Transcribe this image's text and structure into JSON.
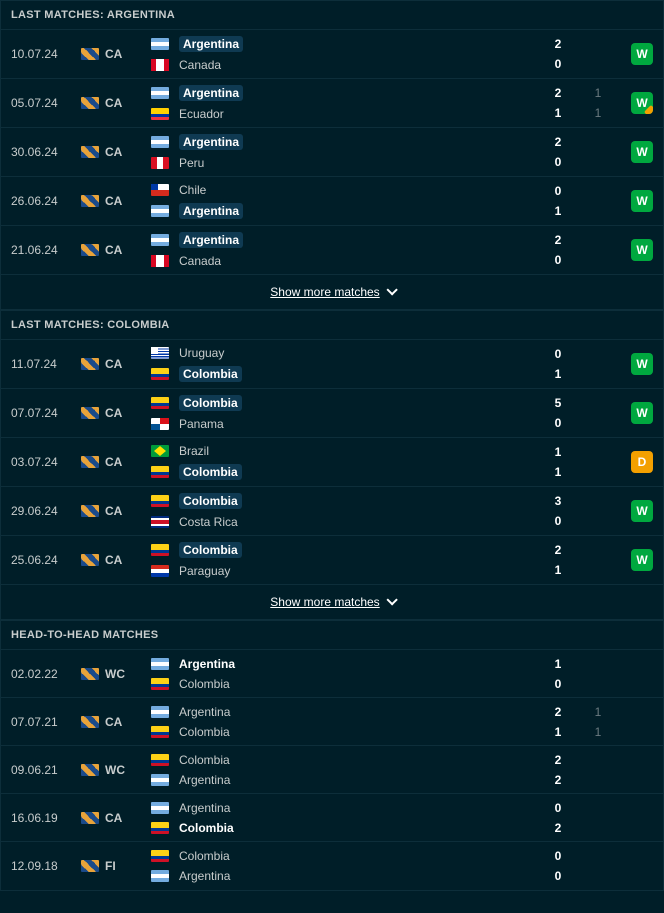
{
  "sections": [
    {
      "title": "LAST MATCHES: ARGENTINA",
      "showMore": "Show more matches",
      "matches": [
        {
          "date": "10.07.24",
          "comp": "CA",
          "home": {
            "name": "Argentina",
            "flag": "f-arg",
            "hl": true
          },
          "away": {
            "name": "Canada",
            "flag": "f-can",
            "hl": false
          },
          "hs": "2",
          "as": "0",
          "he": "",
          "ae": "",
          "res": "W",
          "half": false
        },
        {
          "date": "05.07.24",
          "comp": "CA",
          "home": {
            "name": "Argentina",
            "flag": "f-arg",
            "hl": true
          },
          "away": {
            "name": "Ecuador",
            "flag": "f-ecu",
            "hl": false
          },
          "hs": "2",
          "as": "1",
          "he": "1",
          "ae": "1",
          "res": "W",
          "half": true
        },
        {
          "date": "30.06.24",
          "comp": "CA",
          "home": {
            "name": "Argentina",
            "flag": "f-arg",
            "hl": true
          },
          "away": {
            "name": "Peru",
            "flag": "f-per",
            "hl": false
          },
          "hs": "2",
          "as": "0",
          "he": "",
          "ae": "",
          "res": "W",
          "half": false
        },
        {
          "date": "26.06.24",
          "comp": "CA",
          "home": {
            "name": "Chile",
            "flag": "f-chi",
            "hl": false
          },
          "away": {
            "name": "Argentina",
            "flag": "f-arg",
            "hl": true
          },
          "hs": "0",
          "as": "1",
          "he": "",
          "ae": "",
          "res": "W",
          "half": false
        },
        {
          "date": "21.06.24",
          "comp": "CA",
          "home": {
            "name": "Argentina",
            "flag": "f-arg",
            "hl": true
          },
          "away": {
            "name": "Canada",
            "flag": "f-can",
            "hl": false
          },
          "hs": "2",
          "as": "0",
          "he": "",
          "ae": "",
          "res": "W",
          "half": false
        }
      ]
    },
    {
      "title": "LAST MATCHES: COLOMBIA",
      "showMore": "Show more matches",
      "matches": [
        {
          "date": "11.07.24",
          "comp": "CA",
          "home": {
            "name": "Uruguay",
            "flag": "f-uru",
            "hl": false
          },
          "away": {
            "name": "Colombia",
            "flag": "f-col",
            "hl": true
          },
          "hs": "0",
          "as": "1",
          "he": "",
          "ae": "",
          "res": "W",
          "half": false
        },
        {
          "date": "07.07.24",
          "comp": "CA",
          "home": {
            "name": "Colombia",
            "flag": "f-col",
            "hl": true
          },
          "away": {
            "name": "Panama",
            "flag": "f-pan",
            "hl": false
          },
          "hs": "5",
          "as": "0",
          "he": "",
          "ae": "",
          "res": "W",
          "half": false
        },
        {
          "date": "03.07.24",
          "comp": "CA",
          "home": {
            "name": "Brazil",
            "flag": "f-bra",
            "hl": false
          },
          "away": {
            "name": "Colombia",
            "flag": "f-col",
            "hl": true
          },
          "hs": "1",
          "as": "1",
          "he": "",
          "ae": "",
          "res": "D",
          "half": false
        },
        {
          "date": "29.06.24",
          "comp": "CA",
          "home": {
            "name": "Colombia",
            "flag": "f-col",
            "hl": true
          },
          "away": {
            "name": "Costa Rica",
            "flag": "f-crc",
            "hl": false
          },
          "hs": "3",
          "as": "0",
          "he": "",
          "ae": "",
          "res": "W",
          "half": false
        },
        {
          "date": "25.06.24",
          "comp": "CA",
          "home": {
            "name": "Colombia",
            "flag": "f-col",
            "hl": true
          },
          "away": {
            "name": "Paraguay",
            "flag": "f-par",
            "hl": false
          },
          "hs": "2",
          "as": "1",
          "he": "",
          "ae": "",
          "res": "W",
          "half": false
        }
      ]
    },
    {
      "title": "HEAD-TO-HEAD MATCHES",
      "showMore": "",
      "matches": [
        {
          "date": "02.02.22",
          "comp": "WC",
          "home": {
            "name": "Argentina",
            "flag": "f-arg",
            "hl": false,
            "bold": true
          },
          "away": {
            "name": "Colombia",
            "flag": "f-col",
            "hl": false
          },
          "hs": "1",
          "as": "0",
          "he": "",
          "ae": "",
          "res": "",
          "half": false
        },
        {
          "date": "07.07.21",
          "comp": "CA",
          "home": {
            "name": "Argentina",
            "flag": "f-arg",
            "hl": false
          },
          "away": {
            "name": "Colombia",
            "flag": "f-col",
            "hl": false
          },
          "hs": "2",
          "as": "1",
          "he": "1",
          "ae": "1",
          "res": "",
          "half": false
        },
        {
          "date": "09.06.21",
          "comp": "WC",
          "home": {
            "name": "Colombia",
            "flag": "f-col",
            "hl": false
          },
          "away": {
            "name": "Argentina",
            "flag": "f-arg",
            "hl": false
          },
          "hs": "2",
          "as": "2",
          "he": "",
          "ae": "",
          "res": "",
          "half": false
        },
        {
          "date": "16.06.19",
          "comp": "CA",
          "home": {
            "name": "Argentina",
            "flag": "f-arg",
            "hl": false
          },
          "away": {
            "name": "Colombia",
            "flag": "f-col",
            "hl": false,
            "bold": true
          },
          "hs": "0",
          "as": "2",
          "he": "",
          "ae": "",
          "res": "",
          "half": false
        },
        {
          "date": "12.09.18",
          "comp": "FI",
          "home": {
            "name": "Colombia",
            "flag": "f-col",
            "hl": false
          },
          "away": {
            "name": "Argentina",
            "flag": "f-arg",
            "hl": false
          },
          "hs": "0",
          "as": "0",
          "he": "",
          "ae": "",
          "res": "",
          "half": false
        }
      ]
    }
  ]
}
